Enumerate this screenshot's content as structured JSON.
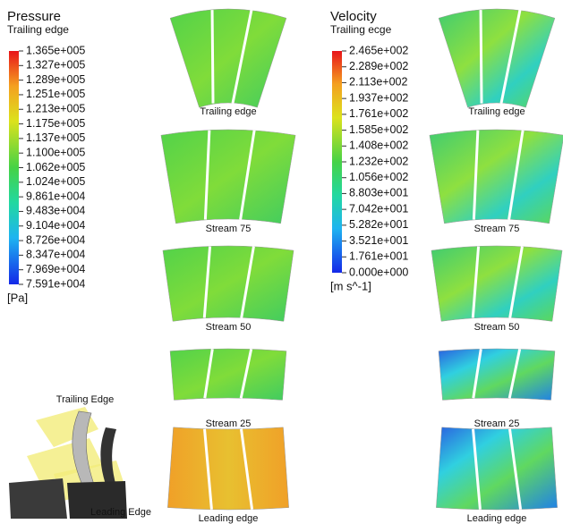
{
  "pressure_legend": {
    "title": "Pressure",
    "subtitle": "Trailing edge",
    "labels": [
      "1.365e+005",
      "1.327e+005",
      "1.289e+005",
      "1.251e+005",
      "1.213e+005",
      "1.175e+005",
      "1.137e+005",
      "1.100e+005",
      "1.062e+005",
      "1.024e+005",
      "9.861e+004",
      "9.483e+004",
      "9.104e+004",
      "8.726e+004",
      "8.347e+004",
      "7.969e+004",
      "7.591e+004"
    ],
    "unit": "[Pa]"
  },
  "velocity_legend": {
    "title": "Velocity",
    "subtitle": "Trailing ecge",
    "labels": [
      "2.465e+002",
      "2.289e+002",
      "2.113e+002",
      "1.937e+002",
      "1.761e+002",
      "1.585e+002",
      "1.408e+002",
      "1.232e+002",
      "1.056e+002",
      "8.803e+001",
      "7.042e+001",
      "5.282e+001",
      "3.521e+001",
      "1.761e+001",
      "0.000e+000"
    ],
    "unit": "[m s^-1]"
  },
  "pressure_panels": [
    "Trailing edge",
    "Stream 75",
    "Stream 50",
    "Stream 25",
    "Leading edge"
  ],
  "velocity_panels": [
    "Trailing edge",
    "Stream 75",
    "Stream 50",
    "Stream 25",
    "Leading edge"
  ],
  "blade_view": {
    "top_label": "Trailing Edge",
    "bottom_label": "Leading Edge"
  }
}
